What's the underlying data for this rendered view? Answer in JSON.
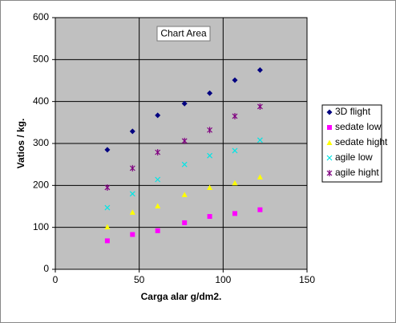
{
  "chart_data": {
    "type": "scatter",
    "tooltip": "Chart Area",
    "xlabel": "Carga alar  g/dm2.",
    "ylabel": "Vatios / kg.",
    "x": [
      31,
      46,
      61,
      77,
      92,
      107,
      122
    ],
    "series": [
      {
        "name": "3D flight",
        "color": "#000080",
        "marker": "diamond",
        "values": [
          285,
          329,
          367,
          395,
          420,
          451,
          475
        ]
      },
      {
        "name": "sedate low",
        "color": "#ff00ff",
        "marker": "square",
        "values": [
          68,
          83,
          92,
          111,
          126,
          133,
          142
        ]
      },
      {
        "name": "sedate hight",
        "color": "#ffff00",
        "marker": "triangle",
        "values": [
          101,
          136,
          151,
          178,
          195,
          206,
          220
        ]
      },
      {
        "name": "agile low",
        "color": "#00e5e5",
        "marker": "x",
        "values": [
          147,
          180,
          214,
          250,
          271,
          283,
          308
        ]
      },
      {
        "name": "agile hight",
        "color": "#800080",
        "marker": "star",
        "values": [
          195,
          241,
          279,
          306,
          332,
          365,
          388
        ]
      }
    ],
    "xlim": [
      0,
      150
    ],
    "xticks": [
      0,
      50,
      100,
      150
    ],
    "ylim": [
      0,
      600
    ],
    "yticks": [
      0,
      100,
      200,
      300,
      400,
      500,
      600
    ],
    "grid": true,
    "legend": "right"
  }
}
